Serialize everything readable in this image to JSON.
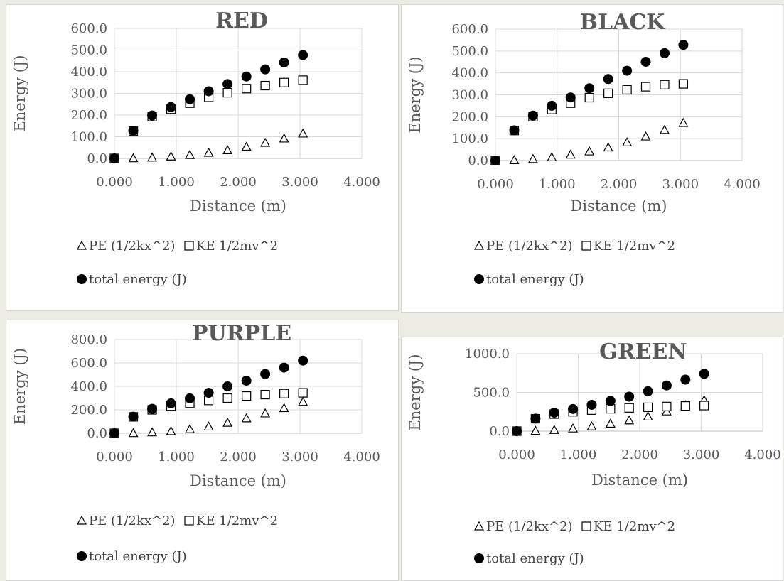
{
  "legend": {
    "pe": "PE (1/2kx^2)",
    "ke": "KE 1/2mv^2",
    "total": "total energy (J)"
  },
  "colors": {
    "marker": "#000000",
    "axis_text": "#595959",
    "grid": "#d9d9d9"
  },
  "chart_data": [
    {
      "type": "scatter",
      "title": "RED",
      "xlabel": "Distance (m)",
      "ylabel": "Energy (J)",
      "xlim": [
        0,
        4
      ],
      "ylim": [
        0,
        600
      ],
      "xticks": [
        "0.000",
        "1.000",
        "2.000",
        "3.000",
        "4.000"
      ],
      "yticks": [
        "0.0",
        "100.0",
        "200.0",
        "300.0",
        "400.0",
        "500.0",
        "600.0"
      ],
      "grid": true,
      "legend_position": "bottom",
      "x": [
        0.0,
        0.305,
        0.61,
        0.914,
        1.219,
        1.524,
        1.829,
        2.134,
        2.438,
        2.743,
        3.048
      ],
      "series": [
        {
          "name": "PE (1/2kx^2)",
          "marker": "triangle-open",
          "values": [
            0,
            1,
            4,
            9,
            16,
            26,
            38,
            54,
            72,
            92,
            115
          ]
        },
        {
          "name": "KE 1/2mv^2",
          "marker": "square-open",
          "values": [
            0,
            127,
            193,
            227,
            255,
            282,
            303,
            322,
            336,
            350,
            361
          ]
        },
        {
          "name": "total energy (J)",
          "marker": "circle-filled",
          "values": [
            0,
            128,
            198,
            237,
            273,
            310,
            343,
            378,
            411,
            443,
            477
          ]
        }
      ]
    },
    {
      "type": "scatter",
      "title": "BLACK",
      "xlabel": "Distance (m)",
      "ylabel": "Energy (J)",
      "xlim": [
        0,
        4
      ],
      "ylim": [
        0,
        600
      ],
      "xticks": [
        "0.000",
        "1.000",
        "2.000",
        "3.000",
        "4.000"
      ],
      "yticks": [
        "0.0",
        "100.0",
        "200.0",
        "300.0",
        "400.0",
        "500.0",
        "600.0"
      ],
      "grid": true,
      "legend_position": "bottom",
      "x": [
        0.0,
        0.305,
        0.61,
        0.914,
        1.219,
        1.524,
        1.829,
        2.134,
        2.438,
        2.743,
        3.048
      ],
      "series": [
        {
          "name": "PE (1/2kx^2)",
          "marker": "triangle-open",
          "values": [
            0,
            2,
            7,
            15,
            27,
            42,
            60,
            83,
            110,
            140,
            172
          ]
        },
        {
          "name": "KE 1/2mv^2",
          "marker": "square-open",
          "values": [
            0,
            137,
            200,
            233,
            262,
            287,
            307,
            323,
            337,
            346,
            350
          ]
        },
        {
          "name": "total energy (J)",
          "marker": "circle-filled",
          "values": [
            0,
            138,
            205,
            250,
            288,
            330,
            372,
            410,
            451,
            490,
            528
          ]
        }
      ]
    },
    {
      "type": "scatter",
      "title": "PURPLE",
      "xlabel": "Distance (m)",
      "ylabel": "Energy (J)",
      "xlim": [
        0,
        4
      ],
      "ylim": [
        0,
        800
      ],
      "xticks": [
        "0.000",
        "1.000",
        "2.000",
        "3.000",
        "4.000"
      ],
      "yticks": [
        "0.0",
        "200.0",
        "400.0",
        "600.0",
        "800.0"
      ],
      "grid": true,
      "legend_position": "bottom",
      "x": [
        0.0,
        0.305,
        0.61,
        0.914,
        1.219,
        1.524,
        1.829,
        2.134,
        2.438,
        2.743,
        3.048
      ],
      "series": [
        {
          "name": "PE (1/2kx^2)",
          "marker": "triangle-open",
          "values": [
            0,
            2,
            8,
            18,
            35,
            58,
            90,
            128,
            170,
            215,
            268
          ]
        },
        {
          "name": "KE 1/2mv^2",
          "marker": "square-open",
          "values": [
            0,
            140,
            200,
            232,
            256,
            280,
            300,
            318,
            330,
            338,
            345
          ]
        },
        {
          "name": "total energy (J)",
          "marker": "circle-filled",
          "values": [
            0,
            142,
            208,
            255,
            298,
            345,
            400,
            448,
            505,
            560,
            620
          ]
        }
      ]
    },
    {
      "type": "scatter",
      "title": "GREEN",
      "xlabel": "Distance (m)",
      "ylabel": "Energy (J)",
      "xlim": [
        0,
        4
      ],
      "ylim": [
        0,
        1000
      ],
      "xticks": [
        "0.000",
        "1.000",
        "2.000",
        "3.000",
        "4.000"
      ],
      "yticks": [
        "0.0",
        "500.0",
        "1000.0"
      ],
      "grid": true,
      "legend_position": "bottom",
      "x": [
        0.0,
        0.305,
        0.61,
        0.914,
        1.219,
        1.524,
        1.829,
        2.134,
        2.438,
        2.743,
        3.048
      ],
      "series": [
        {
          "name": "PE (1/2kx^2)",
          "marker": "triangle-open",
          "values": [
            0,
            4,
            16,
            35,
            62,
            97,
            140,
            190,
            255,
            335,
            400
          ]
        },
        {
          "name": "KE 1/2mv^2",
          "marker": "square-open",
          "values": [
            0,
            160,
            220,
            250,
            272,
            288,
            300,
            308,
            318,
            325,
            330
          ]
        },
        {
          "name": "total energy (J)",
          "marker": "circle-filled",
          "values": [
            0,
            162,
            238,
            286,
            340,
            390,
            445,
            515,
            590,
            665,
            740
          ]
        }
      ]
    }
  ]
}
